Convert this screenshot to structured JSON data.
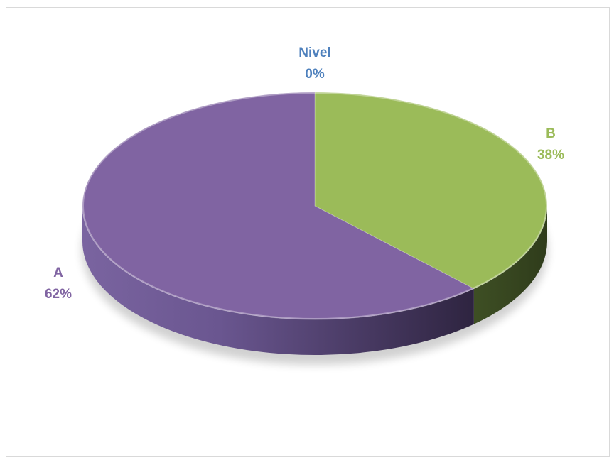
{
  "chart_data": {
    "type": "pie",
    "style": "3d",
    "title": "",
    "categories": [
      "Nivel",
      "B",
      "A"
    ],
    "values": [
      0,
      38,
      62
    ],
    "percent_labels": [
      "0%",
      "38%",
      "62%"
    ],
    "colors": [
      "#4f81bd",
      "#9bbb59",
      "#8064a2"
    ],
    "legend": "none"
  }
}
